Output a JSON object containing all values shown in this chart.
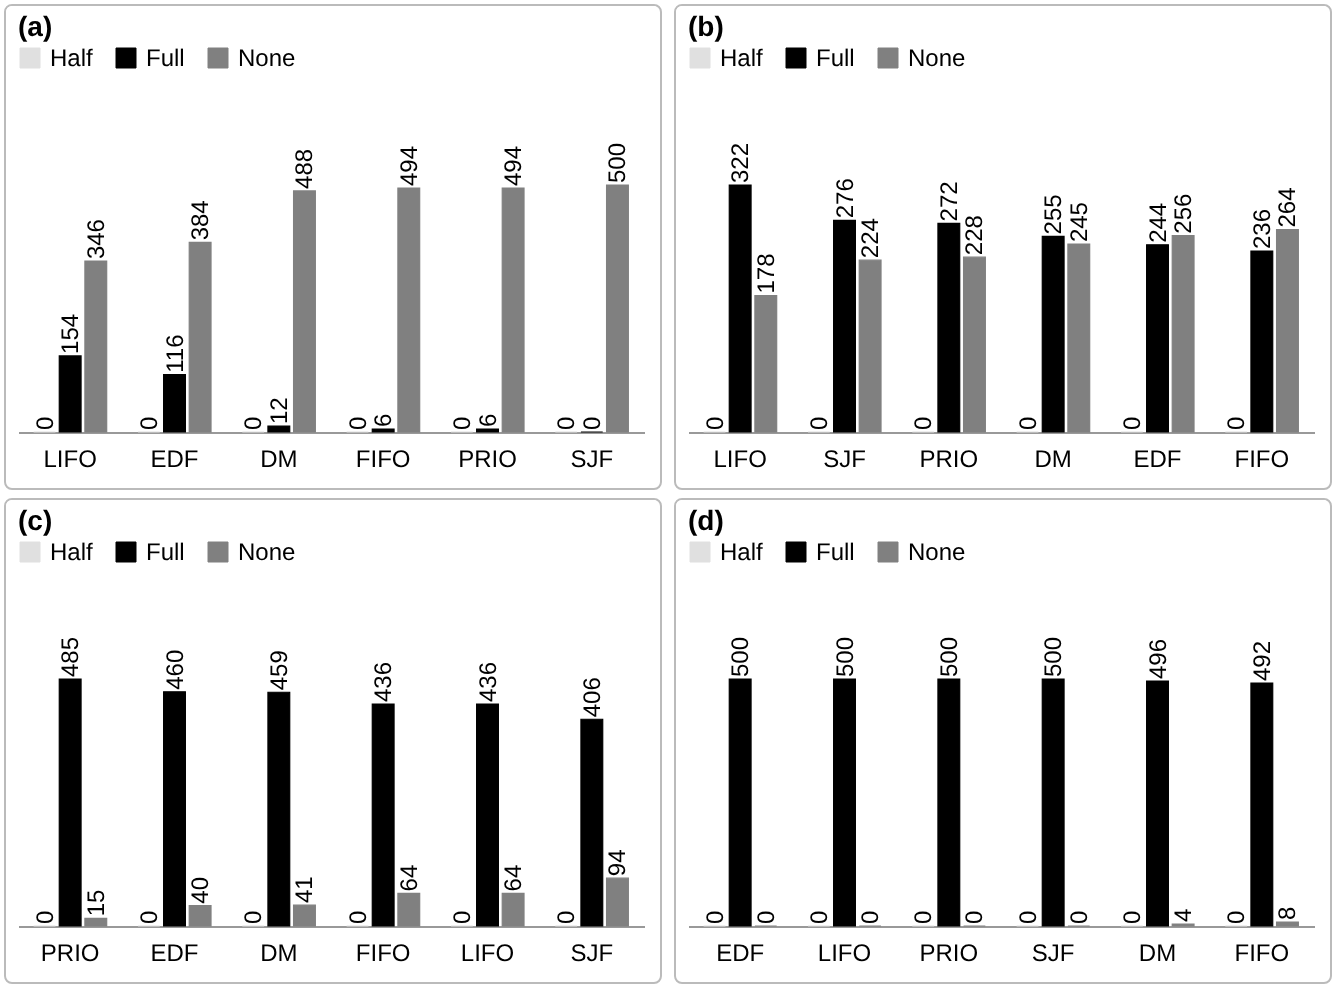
{
  "chart_data": [
    {
      "type": "bar",
      "title": "(a)",
      "categories": [
        "LIFO",
        "EDF",
        "DM",
        "FIFO",
        "PRIO",
        "SJF"
      ],
      "data_labels": true,
      "legend": "top",
      "series": [
        {
          "name": "Half",
          "color": "#e0e0e0",
          "values": [
            0,
            0,
            0,
            0,
            0,
            0
          ]
        },
        {
          "name": "Full",
          "color": "#000000",
          "values": [
            154,
            116,
            12,
            6,
            6,
            0
          ]
        },
        {
          "name": "None",
          "color": "#808080",
          "values": [
            346,
            384,
            488,
            494,
            494,
            500
          ]
        }
      ]
    },
    {
      "type": "bar",
      "title": "(b)",
      "categories": [
        "LIFO",
        "SJF",
        "PRIO",
        "DM",
        "EDF",
        "FIFO"
      ],
      "data_labels": true,
      "legend": "top",
      "series": [
        {
          "name": "Half",
          "color": "#e0e0e0",
          "values": [
            0,
            0,
            0,
            0,
            0,
            0
          ]
        },
        {
          "name": "Full",
          "color": "#000000",
          "values": [
            322,
            276,
            272,
            255,
            244,
            236
          ]
        },
        {
          "name": "None",
          "color": "#808080",
          "values": [
            178,
            224,
            228,
            245,
            256,
            264
          ]
        }
      ]
    },
    {
      "type": "bar",
      "title": "(c)",
      "categories": [
        "PRIO",
        "EDF",
        "DM",
        "FIFO",
        "LIFO",
        "SJF"
      ],
      "data_labels": true,
      "legend": "top",
      "series": [
        {
          "name": "Half",
          "color": "#e0e0e0",
          "values": [
            0,
            0,
            0,
            0,
            0,
            0
          ]
        },
        {
          "name": "Full",
          "color": "#000000",
          "values": [
            485,
            460,
            459,
            436,
            436,
            406
          ]
        },
        {
          "name": "None",
          "color": "#808080",
          "values": [
            15,
            40,
            41,
            64,
            64,
            94
          ]
        }
      ]
    },
    {
      "type": "bar",
      "title": "(d)",
      "categories": [
        "EDF",
        "LIFO",
        "PRIO",
        "SJF",
        "DM",
        "FIFO"
      ],
      "data_labels": true,
      "legend": "top",
      "series": [
        {
          "name": "Half",
          "color": "#e0e0e0",
          "values": [
            0,
            0,
            0,
            0,
            0,
            0
          ]
        },
        {
          "name": "Full",
          "color": "#000000",
          "values": [
            500,
            500,
            500,
            500,
            496,
            492
          ]
        },
        {
          "name": "None",
          "color": "#808080",
          "values": [
            0,
            0,
            0,
            0,
            4,
            8
          ]
        }
      ]
    }
  ]
}
